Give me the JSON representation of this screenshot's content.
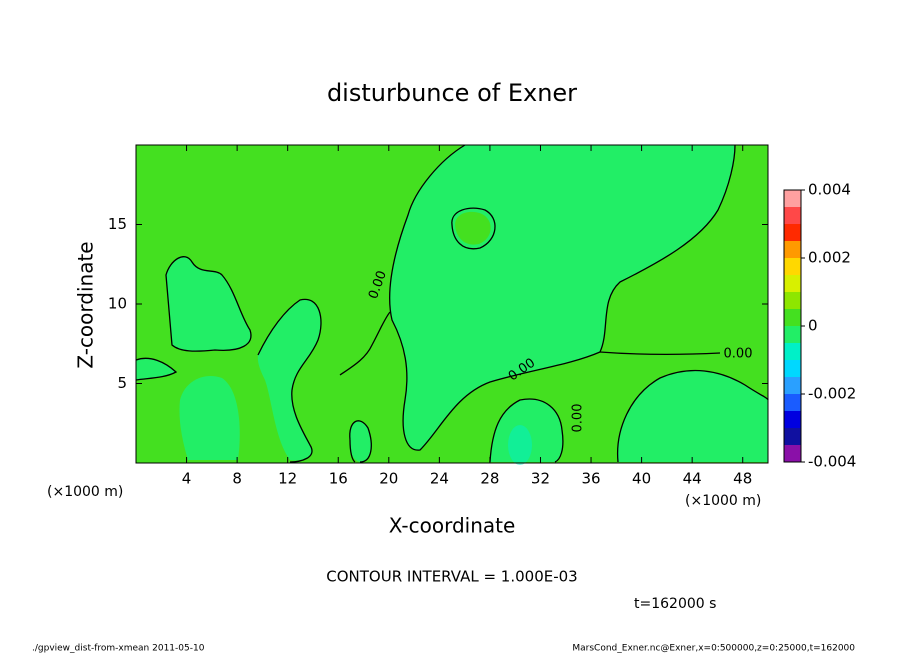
{
  "chart_data": {
    "type": "contour",
    "title": "disturbunce of Exner",
    "x_label": "X-coordinate",
    "y_label": "Z-coordinate",
    "x_unit_left": "(×1000 m)",
    "x_unit_right": "(×1000 m)",
    "xlim": [
      0,
      50
    ],
    "xticks": [
      4,
      8,
      12,
      16,
      20,
      24,
      28,
      32,
      36,
      40,
      44,
      48
    ],
    "ylim": [
      0,
      20
    ],
    "yticks": [
      5,
      10,
      15
    ],
    "colorbar": {
      "levels": [
        -0.004,
        -0.0035,
        -0.003,
        -0.0025,
        -0.002,
        -0.0015,
        -0.001,
        -0.0005,
        0,
        0.0005,
        0.001,
        0.0015,
        0.002,
        0.0025,
        0.003,
        0.0035,
        0.004
      ],
      "colors": [
        "#8a10a8",
        "#1010a0",
        "#0000e0",
        "#1a5cff",
        "#2aa0ff",
        "#00d8ff",
        "#00f0c8",
        "#22ee66",
        "#44e020",
        "#8ee600",
        "#d8f000",
        "#ffd800",
        "#ff9a00",
        "#ff2a00",
        "#ff4848",
        "#ffa0a0"
      ],
      "ticks": [
        -0.004,
        -0.002,
        0,
        0.002,
        0.004
      ]
    },
    "contour_labels": [
      "0.00",
      "0.00",
      "0.00",
      "0.00"
    ],
    "contour_interval": "CONTOUR INTERVAL = 1.000E-03",
    "time": "t=162000 s",
    "footer_left": "./gpview_dist-from-xmean  2011-05-10",
    "footer_right": "MarsCond_Exner.nc@Exner,x=0:500000,z=0:25000,t=162000"
  }
}
